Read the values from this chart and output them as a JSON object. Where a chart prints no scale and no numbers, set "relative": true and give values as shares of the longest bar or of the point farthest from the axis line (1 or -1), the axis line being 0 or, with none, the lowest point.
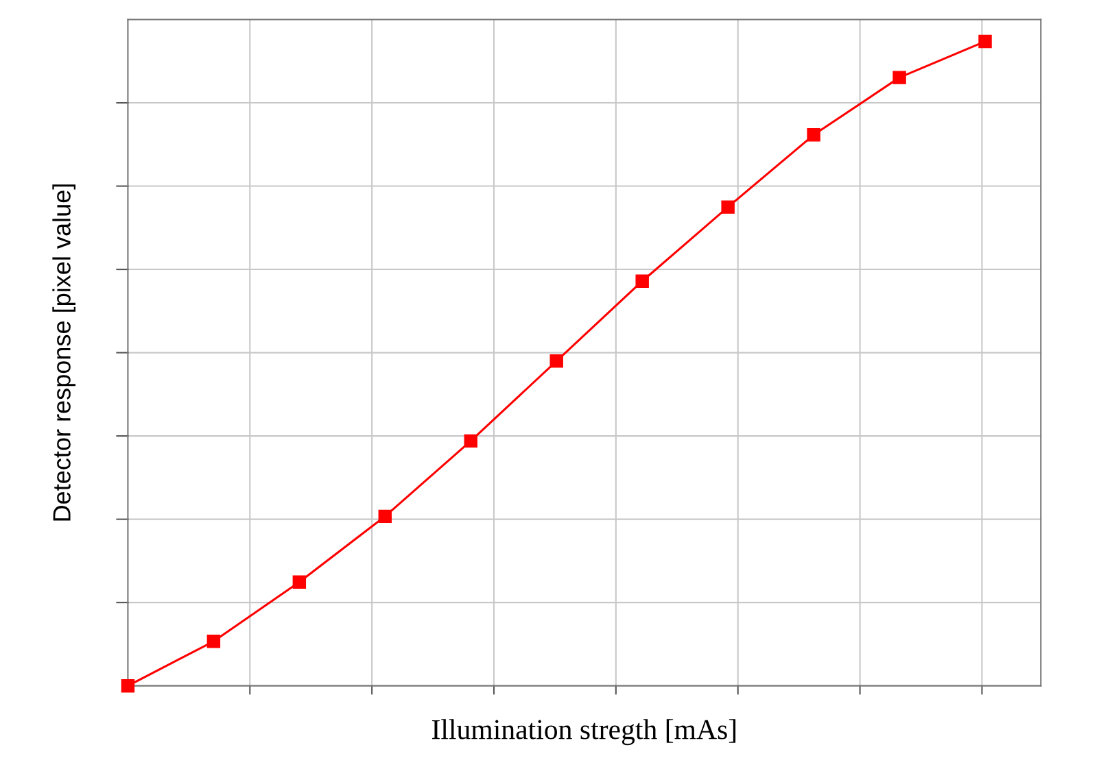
{
  "chart_data": {
    "type": "line",
    "xlabel": "Illumination stregth [mAs]",
    "ylabel": "Detector response [pixel value]",
    "relative": true,
    "grid": true,
    "marker": "square",
    "line_style": "solid",
    "categories": [
      null,
      null,
      null,
      null,
      null,
      null,
      null,
      null,
      null,
      null,
      null
    ],
    "series": [
      {
        "color": "#ff0000",
        "values": [
          0,
          0.069,
          0.161,
          0.263,
          0.38,
          0.504,
          0.628,
          0.743,
          0.855,
          0.944,
          1
        ]
      }
    ]
  }
}
